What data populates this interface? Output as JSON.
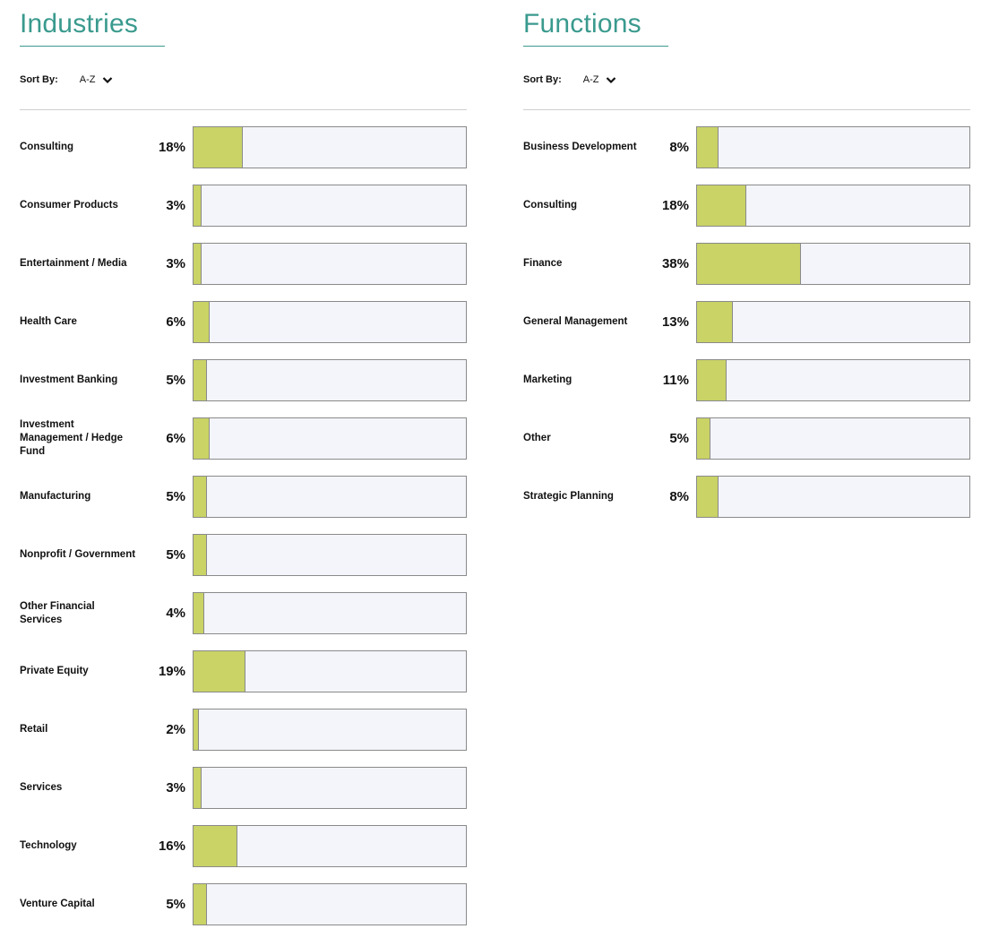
{
  "panels": [
    {
      "title": "Industries",
      "sort_label": "Sort By:",
      "sort_value": "A-Z"
    },
    {
      "title": "Functions",
      "sort_label": "Sort By:",
      "sort_value": "A-Z"
    }
  ],
  "colors": {
    "title": "#3a9a8e",
    "bar_fill": "#c9d366",
    "bar_track": "#f4f5fa",
    "bar_border": "#8a8a8a"
  },
  "chart_data": [
    {
      "type": "bar",
      "title": "Industries",
      "orientation": "horizontal",
      "unit": "%",
      "categories": [
        "Consulting",
        "Consumer Products",
        "Entertainment / Media",
        "Health Care",
        "Investment Banking",
        "Investment Management / Hedge Fund",
        "Manufacturing",
        "Nonprofit / Government",
        "Other Financial Services",
        "Private Equity",
        "Retail",
        "Services",
        "Technology",
        "Venture Capital"
      ],
      "values": [
        18,
        3,
        3,
        6,
        5,
        6,
        5,
        5,
        4,
        19,
        2,
        3,
        16,
        5
      ],
      "labels": [
        "18%",
        "3%",
        "3%",
        "6%",
        "5%",
        "6%",
        "5%",
        "5%",
        "4%",
        "19%",
        "2%",
        "3%",
        "16%",
        "5%"
      ],
      "xlim": [
        0,
        100
      ]
    },
    {
      "type": "bar",
      "title": "Functions",
      "orientation": "horizontal",
      "unit": "%",
      "categories": [
        "Business Development",
        "Consulting",
        "Finance",
        "General Management",
        "Marketing",
        "Other",
        "Strategic Planning"
      ],
      "values": [
        8,
        18,
        38,
        13,
        11,
        5,
        8
      ],
      "labels": [
        "8%",
        "18%",
        "38%",
        "13%",
        "11%",
        "5%",
        "8%"
      ],
      "xlim": [
        0,
        100
      ]
    }
  ]
}
